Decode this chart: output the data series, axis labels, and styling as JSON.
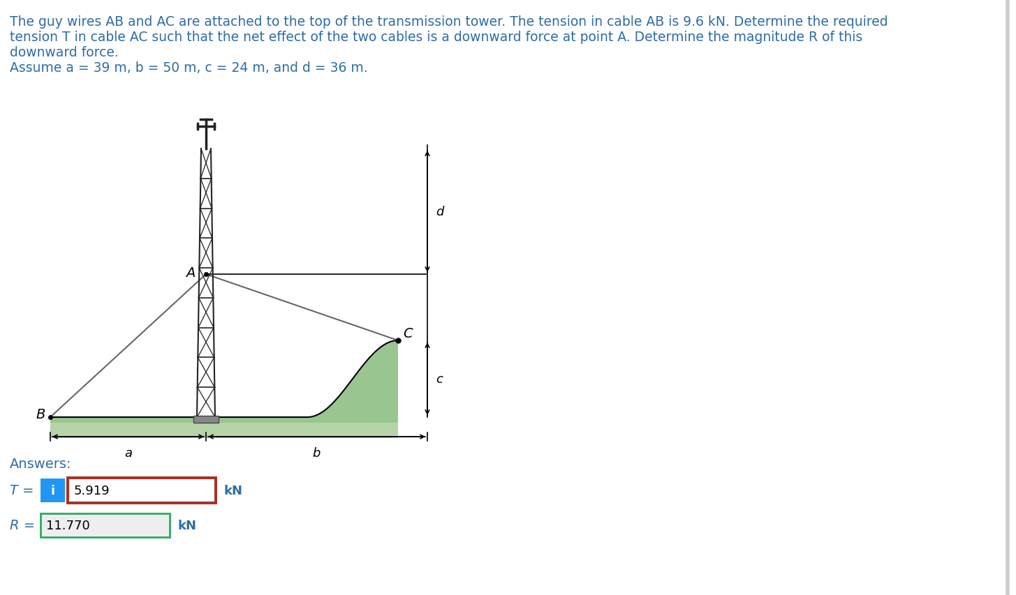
{
  "line1": "The guy wires AB and AC are attached to the top of the transmission tower. The tension in cable AB is 9.6 kN. Determine the required",
  "line2": "tension T in cable AC such that the net effect of the two cables is a downward force at point A. Determine the magnitude R of this",
  "line3": "downward force.",
  "line4": "Assume a = 39 m, b = 50 m, c = 24 m, and d = 36 m.",
  "answers_label": "Answers:",
  "T_label": "T =",
  "T_value": "5.919",
  "T_unit": "kN",
  "R_label": "R =",
  "R_value": "11.770",
  "R_unit": "kN",
  "bg_color": "#ffffff",
  "text_color": "#000000",
  "text_color_blue": "#2e6da4",
  "blue_box_color": "#2196F3",
  "T_border_color": "#a93226",
  "R_border_color": "#27ae60",
  "input_bg": "#ffffff",
  "R_input_bg": "#eeeeee",
  "ground_green_light": "#b5d5a8",
  "ground_green_dark": "#7fb87a",
  "tower_color": "#222222",
  "wire_color": "#666666",
  "dim_color": "#000000",
  "right_border_color": "#cccccc"
}
